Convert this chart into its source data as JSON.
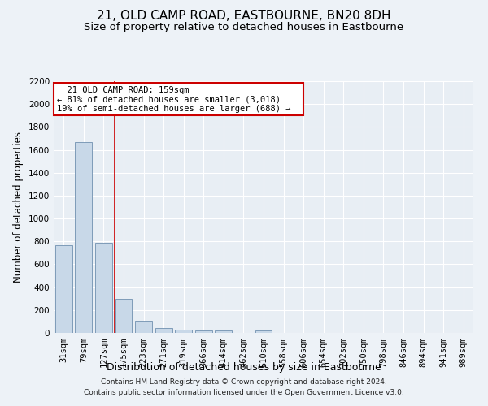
{
  "title": "21, OLD CAMP ROAD, EASTBOURNE, BN20 8DH",
  "subtitle": "Size of property relative to detached houses in Eastbourne",
  "xlabel": "Distribution of detached houses by size in Eastbourne",
  "ylabel": "Number of detached properties",
  "footer_line1": "Contains HM Land Registry data © Crown copyright and database right 2024.",
  "footer_line2": "Contains public sector information licensed under the Open Government Licence v3.0.",
  "categories": [
    "31sqm",
    "79sqm",
    "127sqm",
    "175sqm",
    "223sqm",
    "271sqm",
    "319sqm",
    "366sqm",
    "414sqm",
    "462sqm",
    "510sqm",
    "558sqm",
    "606sqm",
    "654sqm",
    "702sqm",
    "750sqm",
    "798sqm",
    "846sqm",
    "894sqm",
    "941sqm",
    "989sqm"
  ],
  "values": [
    770,
    1670,
    790,
    300,
    110,
    40,
    30,
    20,
    20,
    0,
    20,
    0,
    0,
    0,
    0,
    0,
    0,
    0,
    0,
    0,
    0
  ],
  "bar_color": "#c8d8e8",
  "bar_edge_color": "#7090b0",
  "vline_x_index": 2.55,
  "vline_color": "#cc0000",
  "ylim": [
    0,
    2200
  ],
  "yticks": [
    0,
    200,
    400,
    600,
    800,
    1000,
    1200,
    1400,
    1600,
    1800,
    2000,
    2200
  ],
  "annotation_title": "21 OLD CAMP ROAD: 159sqm",
  "annotation_line1": "← 81% of detached houses are smaller (3,018)",
  "annotation_line2": "19% of semi-detached houses are larger (688) →",
  "annotation_box_color": "#cc0000",
  "background_color": "#edf2f7",
  "plot_bg_color": "#e8eef4",
  "grid_color": "#ffffff",
  "title_fontsize": 11,
  "subtitle_fontsize": 9.5,
  "axis_label_fontsize": 8.5,
  "tick_fontsize": 7.5,
  "annotation_fontsize": 7.5,
  "footer_fontsize": 6.5
}
